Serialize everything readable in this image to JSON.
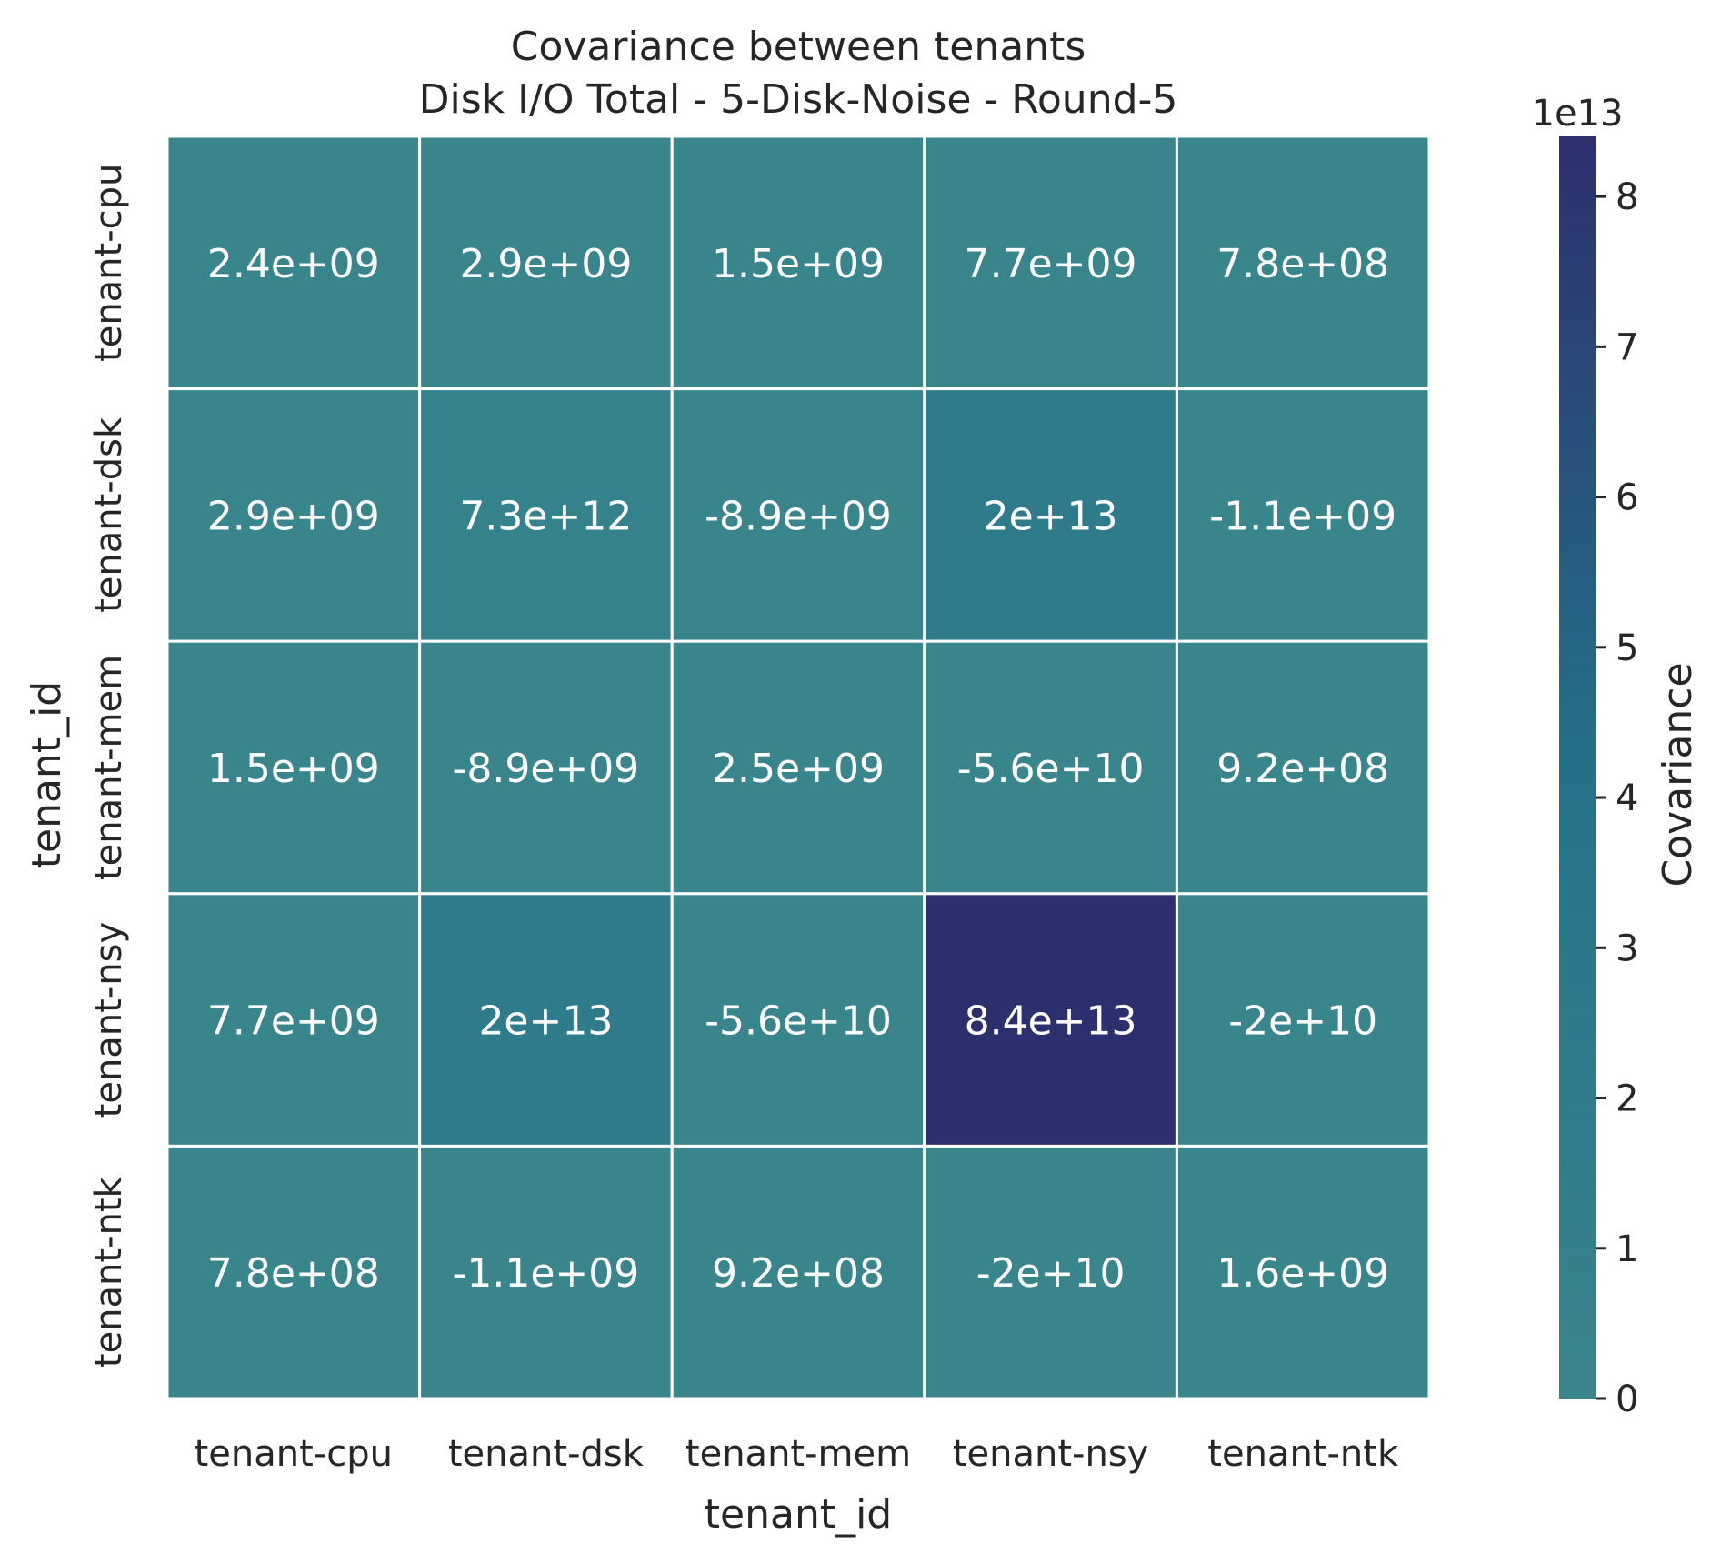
{
  "chart_data": {
    "type": "heatmap",
    "title": "Covariance between tenants",
    "subtitle": "Disk I/O Total - 5-Disk-Noise - Round-5",
    "xlabel": "tenant_id",
    "ylabel": "tenant_id",
    "x_categories": [
      "tenant-cpu",
      "tenant-dsk",
      "tenant-mem",
      "tenant-nsy",
      "tenant-ntk"
    ],
    "y_categories": [
      "tenant-cpu",
      "tenant-dsk",
      "tenant-mem",
      "tenant-nsy",
      "tenant-ntk"
    ],
    "values": [
      [
        2400000000.0,
        2900000000.0,
        1500000000.0,
        7700000000.0,
        780000000.0
      ],
      [
        2900000000.0,
        7300000000000.0,
        -8900000000.0,
        20000000000000.0,
        -1100000000.0
      ],
      [
        1500000000.0,
        -8900000000.0,
        2500000000.0,
        -56000000000.0,
        920000000.0
      ],
      [
        7700000000.0,
        20000000000000.0,
        -56000000000.0,
        84000000000000.0,
        -20000000000.0
      ],
      [
        780000000.0,
        -1100000000.0,
        920000000.0,
        -20000000000.0,
        1600000000.0
      ]
    ],
    "cell_labels": [
      [
        "2.4e+09",
        "2.9e+09",
        "1.5e+09",
        "7.7e+09",
        "7.8e+08"
      ],
      [
        "2.9e+09",
        "7.3e+12",
        "-8.9e+09",
        "2e+13",
        "-1.1e+09"
      ],
      [
        "1.5e+09",
        "-8.9e+09",
        "2.5e+09",
        "-5.6e+10",
        "9.2e+08"
      ],
      [
        "7.7e+09",
        "2e+13",
        "-5.6e+10",
        "8.4e+13",
        "-2e+10"
      ],
      [
        "7.8e+08",
        "-1.1e+09",
        "9.2e+08",
        "-2e+10",
        "1.6e+09"
      ]
    ],
    "colorbar": {
      "label": "Covariance",
      "offset_text": "1e13",
      "range": [
        0,
        84000000000000.0
      ],
      "ticks": [
        0,
        1,
        2,
        3,
        4,
        5,
        6,
        7,
        8
      ],
      "tick_scale": 10000000000000.0,
      "color_low": "#38858c",
      "color_mid": "#237289",
      "color_high": "#2c2f6e"
    },
    "grid": true,
    "grid_color": "#ffffff"
  }
}
